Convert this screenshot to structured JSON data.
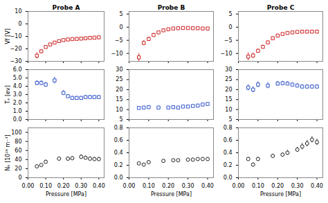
{
  "chart_data": [
    {
      "type": "scatter",
      "title": "Probe A",
      "y_label": "Vf [V]",
      "x": [
        0.05,
        0.075,
        0.1,
        0.125,
        0.15,
        0.175,
        0.2,
        0.225,
        0.25,
        0.275,
        0.3,
        0.325,
        0.35,
        0.375,
        0.4
      ],
      "values": [
        -25.5,
        -22.0,
        -18.5,
        -16.5,
        -15.0,
        -13.8,
        -13.0,
        -12.5,
        -12.2,
        -12.0,
        -11.8,
        -11.5,
        -11.2,
        -11.0,
        -10.8
      ],
      "errors": [
        2.5,
        1.5,
        1.2,
        1.0,
        0.8,
        0.7,
        0.6,
        0.6,
        0.5,
        0.5,
        0.5,
        0.5,
        0.5,
        0.5,
        0.5
      ],
      "color": "#cc2222",
      "marker": "square",
      "xlim": [
        0,
        0.43
      ],
      "ylim": [
        -30,
        10
      ],
      "xticks": [
        0,
        0.1,
        0.2,
        0.3,
        0.4
      ],
      "yticks": [
        -30,
        -20,
        -10,
        0,
        10
      ],
      "tick_labels": "y",
      "grid": false
    },
    {
      "type": "scatter",
      "title": "Probe B",
      "x": [
        0.05,
        0.075,
        0.1,
        0.125,
        0.15,
        0.175,
        0.2,
        0.225,
        0.25,
        0.275,
        0.3,
        0.325,
        0.35,
        0.375,
        0.4
      ],
      "values": [
        -11.5,
        -6.0,
        -4.5,
        -3.0,
        -2.0,
        -1.2,
        -0.8,
        -0.5,
        -0.4,
        -0.3,
        -0.3,
        -0.4,
        -0.4,
        -0.5,
        -0.5
      ],
      "errors": [
        1.5,
        1.0,
        0.8,
        0.7,
        0.5,
        0.4,
        0.3,
        0.3,
        0.3,
        0.3,
        0.3,
        0.3,
        0.3,
        0.3,
        0.3
      ],
      "color": "#cc2222",
      "marker": "square",
      "xlim": [
        0,
        0.43
      ],
      "ylim": [
        -13,
        6
      ],
      "xticks": [
        0,
        0.1,
        0.2,
        0.3,
        0.4
      ],
      "yticks": [
        -10,
        -5,
        0,
        5
      ],
      "tick_labels": "y",
      "grid": false
    },
    {
      "type": "scatter",
      "title": "Probe C",
      "x": [
        0.05,
        0.075,
        0.1,
        0.125,
        0.15,
        0.175,
        0.2,
        0.225,
        0.25,
        0.275,
        0.3,
        0.325,
        0.35,
        0.375,
        0.4
      ],
      "values": [
        -11.2,
        -10.8,
        -9.0,
        -7.5,
        -5.8,
        -4.2,
        -3.2,
        -2.6,
        -2.2,
        -2.0,
        -1.8,
        -1.7,
        -1.7,
        -1.7,
        -1.7
      ],
      "errors": [
        1.5,
        1.0,
        0.8,
        0.7,
        0.6,
        0.5,
        0.4,
        0.4,
        0.4,
        0.4,
        0.4,
        0.4,
        0.4,
        0.4,
        0.4
      ],
      "color": "#cc2222",
      "marker": "square",
      "xlim": [
        0,
        0.43
      ],
      "ylim": [
        -13,
        6
      ],
      "xticks": [
        0,
        0.1,
        0.2,
        0.3,
        0.4
      ],
      "yticks": [
        -10,
        -5,
        0,
        5
      ],
      "tick_labels": "y",
      "grid": false
    },
    {
      "type": "scatter",
      "y_label": "Tₑ [ev]",
      "x": [
        0.05,
        0.075,
        0.1,
        0.15,
        0.2,
        0.225,
        0.25,
        0.275,
        0.3,
        0.325,
        0.35,
        0.375,
        0.4
      ],
      "values": [
        4.4,
        4.4,
        4.2,
        4.7,
        3.2,
        2.8,
        2.6,
        2.6,
        2.6,
        2.7,
        2.7,
        2.7,
        2.7
      ],
      "errors": [
        0.3,
        0.3,
        0.3,
        0.4,
        0.3,
        0.2,
        0.2,
        0.2,
        0.2,
        0.2,
        0.2,
        0.2,
        0.2
      ],
      "color": "#3355cc",
      "marker": "square",
      "xlim": [
        0,
        0.43
      ],
      "ylim": [
        0,
        6
      ],
      "xticks": [
        0,
        0.1,
        0.2,
        0.3,
        0.4
      ],
      "yticks": [
        0,
        1,
        2,
        3,
        4,
        5,
        6
      ],
      "tick_labels": "y",
      "grid": false
    },
    {
      "type": "scatter",
      "x": [
        0.05,
        0.075,
        0.1,
        0.15,
        0.2,
        0.225,
        0.25,
        0.275,
        0.3,
        0.325,
        0.35,
        0.375,
        0.4
      ],
      "values": [
        10.8,
        11.0,
        11.2,
        11.0,
        11.0,
        11.2,
        11.0,
        11.5,
        11.5,
        11.8,
        12.0,
        12.5,
        12.8
      ],
      "errors": [
        0.5,
        0.5,
        0.5,
        0.5,
        0.5,
        0.5,
        0.5,
        0.5,
        0.5,
        0.5,
        0.5,
        0.6,
        0.6
      ],
      "color": "#3355cc",
      "marker": "square",
      "xlim": [
        0,
        0.43
      ],
      "ylim": [
        5,
        30
      ],
      "xticks": [
        0,
        0.1,
        0.2,
        0.3,
        0.4
      ],
      "yticks": [
        5,
        10,
        15,
        20,
        25,
        30
      ],
      "tick_labels": "y",
      "grid": false
    },
    {
      "type": "scatter",
      "x": [
        0.05,
        0.075,
        0.1,
        0.15,
        0.2,
        0.225,
        0.25,
        0.275,
        0.3,
        0.325,
        0.35,
        0.375,
        0.4
      ],
      "values": [
        21.0,
        20.0,
        22.5,
        22.0,
        23.0,
        23.2,
        23.0,
        22.5,
        22.0,
        21.5,
        21.5,
        21.5,
        21.5
      ],
      "errors": [
        1.5,
        1.5,
        1.5,
        1.5,
        1.2,
        1.0,
        1.0,
        1.0,
        1.0,
        1.0,
        1.0,
        1.0,
        1.0
      ],
      "color": "#3355cc",
      "marker": "square",
      "xlim": [
        0,
        0.43
      ],
      "ylim": [
        5,
        30
      ],
      "xticks": [
        0,
        0.1,
        0.2,
        0.3,
        0.4
      ],
      "yticks": [
        5,
        10,
        15,
        20,
        25,
        30
      ],
      "tick_labels": "y",
      "grid": false
    },
    {
      "type": "scatter",
      "y_label": "Nₑ [10¹⁸ m⁻³]",
      "x_label": "Pressure [MPa]",
      "x": [
        0.05,
        0.075,
        0.1,
        0.175,
        0.225,
        0.25,
        0.3,
        0.325,
        0.35,
        0.375,
        0.4
      ],
      "values": [
        25.0,
        28.0,
        35.0,
        42.0,
        42.0,
        43.0,
        46.0,
        44.0,
        42.0,
        41.0,
        41.0
      ],
      "errors": [
        3.0,
        3.0,
        4.0,
        4.0,
        4.0,
        4.0,
        5.0,
        4.0,
        4.0,
        4.0,
        4.0
      ],
      "color": "#222222",
      "marker": "circle",
      "xlim": [
        0,
        0.43
      ],
      "ylim": [
        0,
        110
      ],
      "xticks": [
        0,
        0.1,
        0.2,
        0.3,
        0.4
      ],
      "yticks": [
        0,
        20,
        40,
        60,
        80,
        100
      ],
      "grid": false
    },
    {
      "type": "scatter",
      "x_label": "Pressure [MPa]",
      "x": [
        0.05,
        0.075,
        0.1,
        0.175,
        0.225,
        0.25,
        0.3,
        0.325,
        0.35,
        0.375,
        0.4
      ],
      "values": [
        0.23,
        0.21,
        0.25,
        0.27,
        0.28,
        0.28,
        0.29,
        0.29,
        0.3,
        0.3,
        0.3
      ],
      "errors": [
        0.02,
        0.02,
        0.02,
        0.02,
        0.02,
        0.02,
        0.02,
        0.02,
        0.02,
        0.02,
        0.02
      ],
      "color": "#222222",
      "marker": "circle",
      "xlim": [
        0,
        0.43
      ],
      "ylim": [
        0,
        0.8
      ],
      "xticks": [
        0,
        0.1,
        0.2,
        0.3,
        0.4
      ],
      "yticks": [
        0,
        0.2,
        0.4,
        0.6,
        0.8
      ],
      "grid": false
    },
    {
      "type": "scatter",
      "x_label": "Pressure [MPa]",
      "x": [
        0.05,
        0.075,
        0.1,
        0.175,
        0.225,
        0.25,
        0.3,
        0.325,
        0.35,
        0.375,
        0.4
      ],
      "values": [
        0.3,
        0.21,
        0.3,
        0.35,
        0.37,
        0.4,
        0.45,
        0.5,
        0.55,
        0.61,
        0.57
      ],
      "errors": [
        0.03,
        0.03,
        0.03,
        0.03,
        0.03,
        0.04,
        0.04,
        0.05,
        0.05,
        0.05,
        0.05
      ],
      "color": "#222222",
      "marker": "circle",
      "xlim": [
        0,
        0.43
      ],
      "ylim": [
        0,
        0.8
      ],
      "xticks": [
        0,
        0.1,
        0.2,
        0.3,
        0.4
      ],
      "yticks": [
        0,
        0.2,
        0.4,
        0.6,
        0.8
      ],
      "grid": false
    }
  ]
}
